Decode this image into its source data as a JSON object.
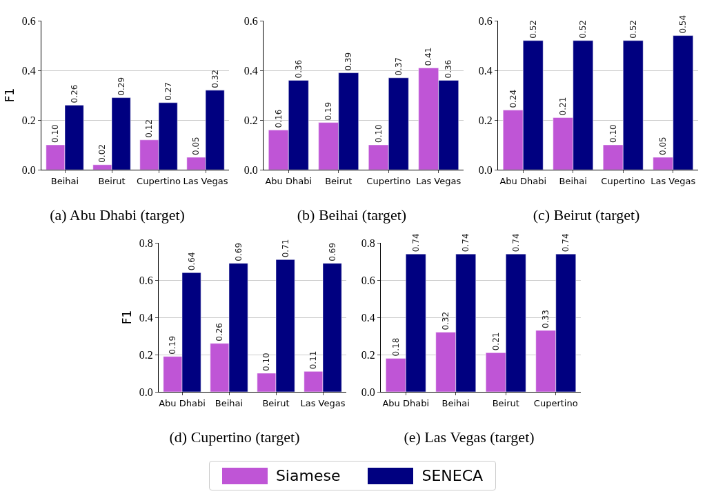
{
  "chart_data": [
    {
      "type": "bar",
      "title": "(a) Abu Dhabi (target)",
      "ylabel": "F1",
      "categories": [
        "Beihai",
        "Beirut",
        "Cupertino",
        "Las Vegas"
      ],
      "ylim": [
        0,
        0.6
      ],
      "yticks": [
        {
          "value": 0,
          "label": "0.0"
        },
        {
          "value": 0.2,
          "label": "0.2"
        },
        {
          "value": 0.4,
          "label": "0.4"
        },
        {
          "value": 0.6,
          "label": "0.6"
        }
      ],
      "grid": "y",
      "legend": "bottom",
      "series": [
        {
          "name": "Siamese",
          "color": "#bf55d6",
          "values": [
            0.1,
            0.02,
            0.12,
            0.05
          ],
          "value_labels": [
            "0.10",
            "0.02",
            "0.12",
            "0.05"
          ]
        },
        {
          "name": "SENECA",
          "color": "#000080",
          "values": [
            0.26,
            0.29,
            0.27,
            0.32
          ],
          "value_labels": [
            "0.26",
            "0.29",
            "0.27",
            "0.32"
          ]
        }
      ]
    },
    {
      "type": "bar",
      "title": "(b) Beihai (target)",
      "categories": [
        "Abu Dhabi",
        "Beirut",
        "Cupertino",
        "Las Vegas"
      ],
      "ylim": [
        0,
        0.6
      ],
      "yticks": [
        {
          "value": 0,
          "label": "0.0"
        },
        {
          "value": 0.2,
          "label": "0.2"
        },
        {
          "value": 0.4,
          "label": "0.4"
        },
        {
          "value": 0.6,
          "label": "0.6"
        }
      ],
      "grid": "y",
      "series": [
        {
          "color": "#bf55d6",
          "values": [
            0.16,
            0.19,
            0.1,
            0.41
          ],
          "value_labels": [
            "0.16",
            "0.19",
            "0.10",
            "0.41"
          ]
        },
        {
          "color": "#000080",
          "values": [
            0.36,
            0.39,
            0.37,
            0.36
          ],
          "value_labels": [
            "0.36",
            "0.39",
            "0.37",
            "0.36"
          ]
        }
      ]
    },
    {
      "type": "bar",
      "title": "(c) Beirut (target)",
      "categories": [
        "Abu Dhabi",
        "Beihai",
        "Cupertino",
        "Las Vegas"
      ],
      "ylim": [
        0,
        0.6
      ],
      "yticks": [
        {
          "value": 0,
          "label": "0.0"
        },
        {
          "value": 0.2,
          "label": "0.2"
        },
        {
          "value": 0.4,
          "label": "0.4"
        },
        {
          "value": 0.6,
          "label": "0.6"
        }
      ],
      "grid": "y",
      "series": [
        {
          "color": "#bf55d6",
          "values": [
            0.24,
            0.21,
            0.1,
            0.05
          ],
          "value_labels": [
            "0.24",
            "0.21",
            "0.10",
            "0.05"
          ]
        },
        {
          "color": "#000080",
          "values": [
            0.52,
            0.52,
            0.52,
            0.54
          ],
          "value_labels": [
            "0.52",
            "0.52",
            "0.52",
            "0.54"
          ]
        }
      ]
    },
    {
      "type": "bar",
      "title": "(d) Cupertino (target)",
      "ylabel": "F1",
      "categories": [
        "Abu Dhabi",
        "Beihai",
        "Beirut",
        "Las Vegas"
      ],
      "ylim": [
        0,
        0.8
      ],
      "yticks": [
        {
          "value": 0,
          "label": "0.0"
        },
        {
          "value": 0.2,
          "label": "0.2"
        },
        {
          "value": 0.4,
          "label": "0.4"
        },
        {
          "value": 0.6,
          "label": "0.6"
        },
        {
          "value": 0.8,
          "label": "0.8"
        }
      ],
      "grid": "y",
      "series": [
        {
          "color": "#bf55d6",
          "values": [
            0.19,
            0.26,
            0.1,
            0.11
          ],
          "value_labels": [
            "0.19",
            "0.26",
            "0.10",
            "0.11"
          ]
        },
        {
          "color": "#000080",
          "values": [
            0.64,
            0.69,
            0.71,
            0.69
          ],
          "value_labels": [
            "0.64",
            "0.69",
            "0.71",
            "0.69"
          ]
        }
      ]
    },
    {
      "type": "bar",
      "title": "(e) Las Vegas (target)",
      "categories": [
        "Abu Dhabi",
        "Beihai",
        "Beirut",
        "Cupertino"
      ],
      "ylim": [
        0,
        0.8
      ],
      "yticks": [
        {
          "value": 0,
          "label": "0.0"
        },
        {
          "value": 0.2,
          "label": "0.2"
        },
        {
          "value": 0.4,
          "label": "0.4"
        },
        {
          "value": 0.6,
          "label": "0.6"
        },
        {
          "value": 0.8,
          "label": "0.8"
        }
      ],
      "grid": "y",
      "series": [
        {
          "color": "#bf55d6",
          "values": [
            0.18,
            0.32,
            0.21,
            0.33
          ],
          "value_labels": [
            "0.18",
            "0.32",
            "0.21",
            "0.33"
          ]
        },
        {
          "color": "#000080",
          "values": [
            0.74,
            0.74,
            0.74,
            0.74
          ],
          "value_labels": [
            "0.74",
            "0.74",
            "0.74",
            "0.74"
          ]
        }
      ]
    }
  ]
}
